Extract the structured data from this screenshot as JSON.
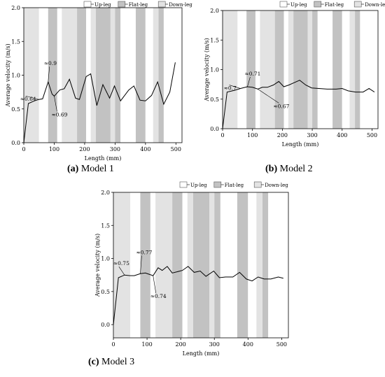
{
  "legend": {
    "up": "Up-leg",
    "flat": "Flat-leg",
    "down": "Down-leg"
  },
  "colors": {
    "up": "#ffffff",
    "flat": "#c2c2c2",
    "down": "#e3e3e3",
    "line": "#000000"
  },
  "chart_data": [
    {
      "type": "line",
      "caption_label": "(a)",
      "caption_text": "Model 1",
      "xlabel": "Length (mm)",
      "ylabel": "Average velocity (m/s)",
      "xlim": [
        0,
        520
      ],
      "ylim": [
        0,
        2.0
      ],
      "xticks": [
        0,
        100,
        200,
        300,
        400,
        500
      ],
      "yticks": [
        0.0,
        0.5,
        1.0,
        1.5,
        2.0
      ],
      "ytick_labels": [
        "0.0",
        "0.5",
        "1.0",
        "1.5",
        "2.0"
      ],
      "legend_position": "top-right",
      "segments": [
        {
          "x0": 0,
          "x1": 10,
          "kind": "down"
        },
        {
          "x0": 10,
          "x1": 50,
          "kind": "down"
        },
        {
          "x0": 50,
          "x1": 80,
          "kind": "up"
        },
        {
          "x0": 80,
          "x1": 110,
          "kind": "flat"
        },
        {
          "x0": 110,
          "x1": 125,
          "kind": "up"
        },
        {
          "x0": 125,
          "x1": 175,
          "kind": "down"
        },
        {
          "x0": 175,
          "x1": 205,
          "kind": "flat"
        },
        {
          "x0": 205,
          "x1": 220,
          "kind": "up"
        },
        {
          "x0": 220,
          "x1": 237,
          "kind": "down"
        },
        {
          "x0": 237,
          "x1": 285,
          "kind": "flat"
        },
        {
          "x0": 285,
          "x1": 300,
          "kind": "down"
        },
        {
          "x0": 300,
          "x1": 318,
          "kind": "flat"
        },
        {
          "x0": 318,
          "x1": 368,
          "kind": "up"
        },
        {
          "x0": 368,
          "x1": 400,
          "kind": "flat"
        },
        {
          "x0": 400,
          "x1": 425,
          "kind": "up"
        },
        {
          "x0": 425,
          "x1": 443,
          "kind": "down"
        },
        {
          "x0": 443,
          "x1": 460,
          "kind": "flat"
        },
        {
          "x0": 460,
          "x1": 520,
          "kind": "up"
        }
      ],
      "x": [
        0,
        15,
        35,
        50,
        62,
        80,
        93,
        100,
        118,
        133,
        150,
        170,
        183,
        205,
        220,
        240,
        260,
        282,
        298,
        318,
        345,
        362,
        382,
        400,
        420,
        440,
        460,
        480,
        498
      ],
      "y": [
        0.0,
        0.58,
        0.62,
        0.64,
        0.65,
        0.9,
        0.72,
        0.69,
        0.78,
        0.8,
        0.94,
        0.66,
        0.64,
        0.98,
        1.02,
        0.55,
        0.86,
        0.66,
        0.84,
        0.62,
        0.78,
        0.84,
        0.63,
        0.62,
        0.7,
        0.9,
        0.57,
        0.75,
        1.19
      ],
      "annotations": [
        {
          "text": "≈0.64",
          "x": 50,
          "y": 0.64
        },
        {
          "text": "≈0.9",
          "x": 80,
          "y": 0.9
        },
        {
          "text": "≈0.69",
          "x": 100,
          "y": 0.69
        }
      ]
    },
    {
      "type": "line",
      "caption_label": "(b)",
      "caption_text": "Model 2",
      "xlabel": "Length (mm)",
      "ylabel": "Average velocity (m/s)",
      "xlim": [
        0,
        520
      ],
      "ylim": [
        0,
        2.0
      ],
      "xticks": [
        0,
        100,
        200,
        300,
        400,
        500
      ],
      "yticks": [
        0.0,
        0.5,
        1.0,
        1.5,
        2.0
      ],
      "ytick_labels": [
        "0.0",
        "0.5",
        "1.0",
        "1.5",
        "2.0"
      ],
      "legend_position": "top-right",
      "segments": [
        {
          "x0": 0,
          "x1": 50,
          "kind": "down"
        },
        {
          "x0": 50,
          "x1": 80,
          "kind": "up"
        },
        {
          "x0": 80,
          "x1": 110,
          "kind": "flat"
        },
        {
          "x0": 110,
          "x1": 125,
          "kind": "up"
        },
        {
          "x0": 125,
          "x1": 175,
          "kind": "down"
        },
        {
          "x0": 175,
          "x1": 205,
          "kind": "flat"
        },
        {
          "x0": 205,
          "x1": 220,
          "kind": "up"
        },
        {
          "x0": 220,
          "x1": 237,
          "kind": "down"
        },
        {
          "x0": 237,
          "x1": 285,
          "kind": "flat"
        },
        {
          "x0": 285,
          "x1": 300,
          "kind": "down"
        },
        {
          "x0": 300,
          "x1": 318,
          "kind": "flat"
        },
        {
          "x0": 318,
          "x1": 368,
          "kind": "up"
        },
        {
          "x0": 368,
          "x1": 400,
          "kind": "flat"
        },
        {
          "x0": 400,
          "x1": 425,
          "kind": "up"
        },
        {
          "x0": 425,
          "x1": 443,
          "kind": "down"
        },
        {
          "x0": 443,
          "x1": 460,
          "kind": "flat"
        },
        {
          "x0": 460,
          "x1": 520,
          "kind": "up"
        }
      ],
      "x": [
        0,
        15,
        40,
        60,
        83,
        100,
        118,
        133,
        150,
        170,
        188,
        205,
        222,
        240,
        258,
        278,
        298,
        322,
        350,
        380,
        400,
        420,
        445,
        470,
        490,
        508
      ],
      "y": [
        0.0,
        0.62,
        0.65,
        0.68,
        0.71,
        0.7,
        0.67,
        0.7,
        0.7,
        0.74,
        0.8,
        0.71,
        0.74,
        0.78,
        0.82,
        0.74,
        0.69,
        0.68,
        0.67,
        0.67,
        0.68,
        0.64,
        0.62,
        0.62,
        0.68,
        0.62
      ],
      "annotations": [
        {
          "text": "≈0.7",
          "x": 60,
          "y": 0.68
        },
        {
          "text": "≈0.71",
          "x": 83,
          "y": 0.71
        },
        {
          "text": "≈0.67",
          "x": 118,
          "y": 0.67
        }
      ]
    },
    {
      "type": "line",
      "caption_label": "(c)",
      "caption_text": "Model 3",
      "xlabel": "Length (mm)",
      "ylabel": "Average velocity (m/s)",
      "xlim": [
        0,
        520
      ],
      "ylim": [
        -0.2,
        2.0
      ],
      "xticks": [
        0,
        100,
        200,
        300,
        400,
        500
      ],
      "yticks": [
        0.0,
        0.5,
        1.0,
        1.5,
        2.0
      ],
      "ytick_labels": [
        "0.0",
        "0.5",
        "1.0",
        "1.5",
        "2.0"
      ],
      "legend_position": "top-right",
      "segments": [
        {
          "x0": 0,
          "x1": 50,
          "kind": "down"
        },
        {
          "x0": 50,
          "x1": 80,
          "kind": "up"
        },
        {
          "x0": 80,
          "x1": 110,
          "kind": "flat"
        },
        {
          "x0": 110,
          "x1": 125,
          "kind": "up"
        },
        {
          "x0": 125,
          "x1": 175,
          "kind": "down"
        },
        {
          "x0": 175,
          "x1": 205,
          "kind": "flat"
        },
        {
          "x0": 205,
          "x1": 220,
          "kind": "up"
        },
        {
          "x0": 220,
          "x1": 237,
          "kind": "down"
        },
        {
          "x0": 237,
          "x1": 285,
          "kind": "flat"
        },
        {
          "x0": 285,
          "x1": 300,
          "kind": "down"
        },
        {
          "x0": 300,
          "x1": 318,
          "kind": "flat"
        },
        {
          "x0": 318,
          "x1": 368,
          "kind": "up"
        },
        {
          "x0": 368,
          "x1": 400,
          "kind": "flat"
        },
        {
          "x0": 400,
          "x1": 425,
          "kind": "up"
        },
        {
          "x0": 425,
          "x1": 443,
          "kind": "down"
        },
        {
          "x0": 443,
          "x1": 460,
          "kind": "flat"
        },
        {
          "x0": 460,
          "x1": 520,
          "kind": "up"
        }
      ],
      "x": [
        0,
        15,
        33,
        50,
        62,
        80,
        95,
        118,
        133,
        145,
        160,
        175,
        190,
        205,
        222,
        240,
        258,
        275,
        298,
        315,
        333,
        355,
        375,
        395,
        412,
        430,
        448,
        468,
        490,
        505
      ],
      "y": [
        0.0,
        0.71,
        0.75,
        0.74,
        0.74,
        0.77,
        0.78,
        0.74,
        0.86,
        0.82,
        0.88,
        0.78,
        0.8,
        0.82,
        0.88,
        0.79,
        0.81,
        0.73,
        0.81,
        0.71,
        0.72,
        0.72,
        0.79,
        0.69,
        0.66,
        0.72,
        0.69,
        0.69,
        0.72,
        0.7
      ],
      "annotations": [
        {
          "text": "≈0.75",
          "x": 33,
          "y": 0.75
        },
        {
          "text": "≈0.77",
          "x": 80,
          "y": 0.77
        },
        {
          "text": "≈0.74",
          "x": 118,
          "y": 0.74
        }
      ]
    }
  ]
}
